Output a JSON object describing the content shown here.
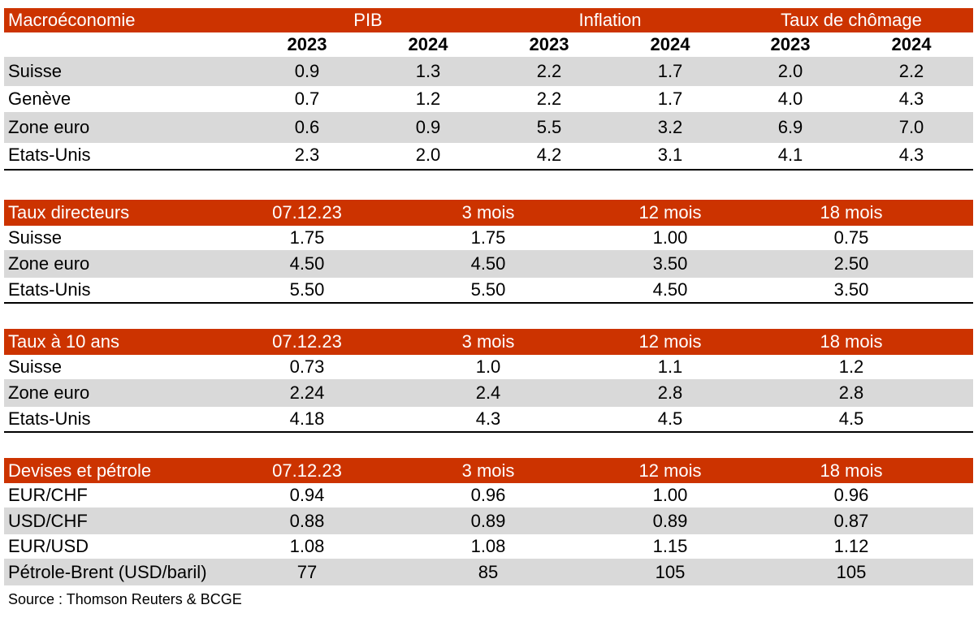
{
  "macro": {
    "title": "Macroéconomie",
    "groups": [
      "PIB",
      "Inflation",
      "Taux de chômage"
    ],
    "years": [
      "2023",
      "2024",
      "2023",
      "2024",
      "2023",
      "2024"
    ],
    "rows": [
      {
        "label": "Suisse",
        "values": [
          "0.9",
          "1.3",
          "2.2",
          "1.7",
          "2.0",
          "2.2"
        ]
      },
      {
        "label": "Genève",
        "values": [
          "0.7",
          "1.2",
          "2.2",
          "1.7",
          "4.0",
          "4.3"
        ]
      },
      {
        "label": "Zone euro",
        "values": [
          "0.6",
          "0.9",
          "5.5",
          "3.2",
          "6.9",
          "7.0"
        ]
      },
      {
        "label": "Etats-Unis",
        "values": [
          "2.3",
          "2.0",
          "4.2",
          "3.1",
          "4.1",
          "4.3"
        ]
      }
    ]
  },
  "policy_rates": {
    "title": "Taux directeurs",
    "columns": [
      "07.12.23",
      "3 mois",
      "12 mois",
      "18 mois"
    ],
    "rows": [
      {
        "label": "Suisse",
        "values": [
          "1.75",
          "1.75",
          "1.00",
          "0.75"
        ]
      },
      {
        "label": "Zone euro",
        "values": [
          "4.50",
          "4.50",
          "3.50",
          "2.50"
        ]
      },
      {
        "label": "Etats-Unis",
        "values": [
          "5.50",
          "5.50",
          "4.50",
          "3.50"
        ]
      }
    ]
  },
  "ten_year": {
    "title": "Taux à 10 ans",
    "columns": [
      "07.12.23",
      "3 mois",
      "12 mois",
      "18 mois"
    ],
    "rows": [
      {
        "label": "Suisse",
        "values": [
          "0.73",
          "1.0",
          "1.1",
          "1.2"
        ]
      },
      {
        "label": "Zone euro",
        "values": [
          "2.24",
          "2.4",
          "2.8",
          "2.8"
        ]
      },
      {
        "label": "Etats-Unis",
        "values": [
          "4.18",
          "4.3",
          "4.5",
          "4.5"
        ]
      }
    ]
  },
  "fx_oil": {
    "title": "Devises et pétrole",
    "columns": [
      "07.12.23",
      "3 mois",
      "12 mois",
      "18 mois"
    ],
    "rows": [
      {
        "label": "EUR/CHF",
        "values": [
          "0.94",
          "0.96",
          "1.00",
          "0.96"
        ]
      },
      {
        "label": "USD/CHF",
        "values": [
          "0.88",
          "0.89",
          "0.89",
          "0.87"
        ]
      },
      {
        "label": "EUR/USD",
        "values": [
          "1.08",
          "1.08",
          "1.15",
          "1.12"
        ]
      },
      {
        "label": "Pétrole-Brent (USD/baril)",
        "values": [
          "77",
          "85",
          "105",
          "105"
        ]
      }
    ]
  },
  "source": "Source : Thomson Reuters & BCGE",
  "colors": {
    "header_bg": "#cc3300",
    "row_shade": "#d9d9d9",
    "header_text": "#ffffff"
  }
}
